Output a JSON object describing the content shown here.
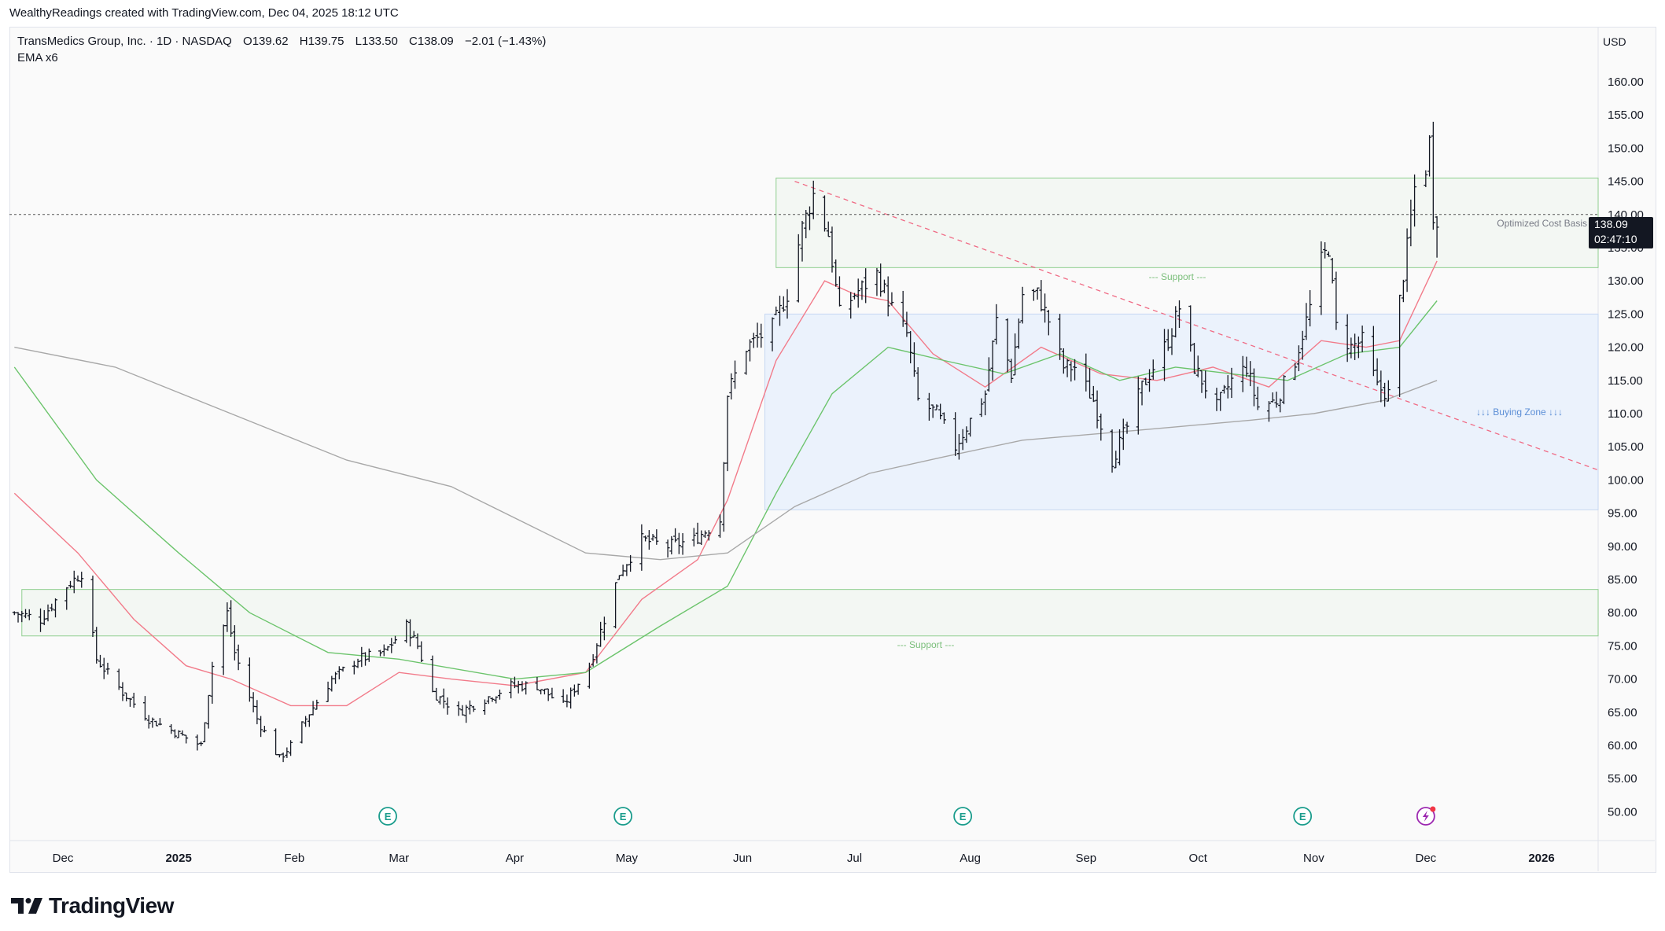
{
  "header": {
    "caption": "WealthyReadings created with TradingView.com, Dec 04, 2025 18:12 UTC"
  },
  "legend": {
    "symbol": "TransMedics Group, Inc. · 1D · NASDAQ",
    "open": "O139.62",
    "high": "H139.75",
    "low": "L133.50",
    "close": "C138.09",
    "change": "−2.01 (−1.43%)",
    "indicator": "EMA x6"
  },
  "price_scale": {
    "currency": "USD",
    "last_price": "138.09",
    "countdown": "02:47:10"
  },
  "annotations": {
    "support_top": "--- Support ---",
    "support_bottom": "--- Support ---",
    "buying_zone": "↓↓↓ Buying Zone ↓↓↓",
    "cost_basis": "Optimized Cost Basis"
  },
  "branding": {
    "name": "TradingView"
  },
  "colors": {
    "ema_fast": "#f27b8a",
    "ema_mid": "#6cc46c",
    "ema_slow": "#a8a8a8",
    "buying_zone_fill": "#e8f0fc",
    "support_fill": "#f1f6f1",
    "trendline": "#f06b85"
  },
  "chart_data": {
    "type": "ohlc-bar",
    "y_ticks": [
      160,
      155,
      150,
      145,
      140,
      135,
      130,
      125,
      120,
      115,
      110,
      105,
      100,
      95,
      90,
      85,
      80,
      75,
      70,
      65,
      60,
      55,
      50
    ],
    "y_range": [
      45,
      167
    ],
    "x_labels": [
      {
        "label": "Dec",
        "date": "2024-12-01"
      },
      {
        "label": "2025",
        "date": "2025-01-01"
      },
      {
        "label": "Feb",
        "date": "2025-02-01"
      },
      {
        "label": "Mar",
        "date": "2025-03-01"
      },
      {
        "label": "Apr",
        "date": "2025-04-01"
      },
      {
        "label": "May",
        "date": "2025-05-01"
      },
      {
        "label": "Jun",
        "date": "2025-06-01"
      },
      {
        "label": "Jul",
        "date": "2025-07-01"
      },
      {
        "label": "Aug",
        "date": "2025-08-01"
      },
      {
        "label": "Sep",
        "date": "2025-09-01"
      },
      {
        "label": "Oct",
        "date": "2025-10-01"
      },
      {
        "label": "Nov",
        "date": "2025-11-01"
      },
      {
        "label": "Dec",
        "date": "2025-12-01"
      },
      {
        "label": "2026",
        "date": "2026-01-01"
      }
    ],
    "earnings_markers": [
      "2025-02-26",
      "2025-04-30",
      "2025-07-30",
      "2025-10-29"
    ],
    "dividend_marker": "2025-12-01",
    "zones": [
      {
        "name": "Optimized Cost Basis",
        "from": "2025-06-10",
        "to": "2026-01-31",
        "low": 132,
        "high": 145.5
      },
      {
        "name": "Buying Zone",
        "from": "2025-06-07",
        "to": "2026-01-31",
        "low": 95.5,
        "high": 125
      },
      {
        "name": "Support",
        "from": "2024-11-20",
        "to": "2026-01-31",
        "low": 76.5,
        "high": 83.5
      }
    ],
    "trendline": {
      "from": [
        "2025-06-15",
        145
      ],
      "to": [
        "2026-01-31",
        101.5
      ]
    },
    "current_price_line": 140,
    "series": [
      {
        "name": "Price",
        "anchors": [
          [
            "2024-11-18",
            80
          ],
          [
            "2024-11-25",
            79
          ],
          [
            "2024-12-02",
            84
          ],
          [
            "2024-12-06",
            86
          ],
          [
            "2024-12-10",
            73
          ],
          [
            "2024-12-17",
            68
          ],
          [
            "2024-12-24",
            64
          ],
          [
            "2024-12-31",
            62
          ],
          [
            "2025-01-07",
            60
          ],
          [
            "2025-01-10",
            72
          ],
          [
            "2025-01-14",
            80
          ],
          [
            "2025-01-16",
            74
          ],
          [
            "2025-01-22",
            64
          ],
          [
            "2025-01-28",
            58
          ],
          [
            "2025-01-31",
            60
          ],
          [
            "2025-02-04",
            64
          ],
          [
            "2025-02-11",
            70
          ],
          [
            "2025-02-18",
            73
          ],
          [
            "2025-02-25",
            74
          ],
          [
            "2025-03-03",
            78
          ],
          [
            "2025-03-06",
            75
          ],
          [
            "2025-03-10",
            68
          ],
          [
            "2025-03-17",
            65
          ],
          [
            "2025-03-24",
            67
          ],
          [
            "2025-03-31",
            69
          ],
          [
            "2025-04-07",
            69
          ],
          [
            "2025-04-14",
            66
          ],
          [
            "2025-04-21",
            72
          ],
          [
            "2025-04-25",
            79
          ],
          [
            "2025-04-29",
            86
          ],
          [
            "2025-05-05",
            91
          ],
          [
            "2025-05-12",
            90
          ],
          [
            "2025-05-19",
            91
          ],
          [
            "2025-05-26",
            94
          ],
          [
            "2025-05-28",
            113
          ],
          [
            "2025-06-02",
            120
          ],
          [
            "2025-06-09",
            123
          ],
          [
            "2025-06-13",
            128
          ],
          [
            "2025-06-17",
            138
          ],
          [
            "2025-06-20",
            143
          ],
          [
            "2025-06-24",
            137
          ],
          [
            "2025-06-27",
            125
          ],
          [
            "2025-07-01",
            128
          ],
          [
            "2025-07-07",
            131
          ],
          [
            "2025-07-11",
            126
          ],
          [
            "2025-07-15",
            122
          ],
          [
            "2025-07-18",
            112
          ],
          [
            "2025-07-23",
            110
          ],
          [
            "2025-07-28",
            105
          ],
          [
            "2025-07-31",
            108
          ],
          [
            "2025-08-05",
            113
          ],
          [
            "2025-08-08",
            124
          ],
          [
            "2025-08-12",
            116
          ],
          [
            "2025-08-15",
            128
          ],
          [
            "2025-08-19",
            128
          ],
          [
            "2025-08-22",
            124
          ],
          [
            "2025-08-26",
            117
          ],
          [
            "2025-08-29",
            117
          ],
          [
            "2025-09-03",
            112
          ],
          [
            "2025-09-08",
            103
          ],
          [
            "2025-09-12",
            108
          ],
          [
            "2025-09-16",
            114
          ],
          [
            "2025-09-19",
            117
          ],
          [
            "2025-09-23",
            121
          ],
          [
            "2025-09-26",
            126
          ],
          [
            "2025-09-30",
            117
          ],
          [
            "2025-10-06",
            111
          ],
          [
            "2025-10-10",
            115
          ],
          [
            "2025-10-14",
            117
          ],
          [
            "2025-10-17",
            111
          ],
          [
            "2025-10-22",
            112
          ],
          [
            "2025-10-27",
            118
          ],
          [
            "2025-10-31",
            126
          ],
          [
            "2025-11-03",
            133
          ],
          [
            "2025-11-05",
            135
          ],
          [
            "2025-11-07",
            123
          ],
          [
            "2025-11-11",
            120
          ],
          [
            "2025-11-14",
            121
          ],
          [
            "2025-11-18",
            114
          ],
          [
            "2025-11-21",
            113
          ],
          [
            "2025-11-24",
            127
          ],
          [
            "2025-11-26",
            135
          ],
          [
            "2025-11-28",
            144
          ],
          [
            "2025-12-01",
            147
          ],
          [
            "2025-12-02",
            151
          ],
          [
            "2025-12-03",
            140.1
          ],
          [
            "2025-12-04",
            138.09
          ]
        ]
      },
      {
        "name": "EMA fast",
        "points": [
          [
            "2024-11-18",
            98
          ],
          [
            "2024-12-05",
            89
          ],
          [
            "2024-12-20",
            79
          ],
          [
            "2025-01-03",
            72
          ],
          [
            "2025-01-15",
            70
          ],
          [
            "2025-01-31",
            66
          ],
          [
            "2025-02-15",
            66
          ],
          [
            "2025-03-01",
            71
          ],
          [
            "2025-03-15",
            70
          ],
          [
            "2025-04-01",
            69
          ],
          [
            "2025-04-20",
            71
          ],
          [
            "2025-05-05",
            82
          ],
          [
            "2025-05-20",
            88
          ],
          [
            "2025-05-28",
            97
          ],
          [
            "2025-06-10",
            118
          ],
          [
            "2025-06-23",
            130
          ],
          [
            "2025-07-01",
            128
          ],
          [
            "2025-07-10",
            127
          ],
          [
            "2025-07-22",
            119
          ],
          [
            "2025-08-05",
            114
          ],
          [
            "2025-08-20",
            120
          ],
          [
            "2025-09-05",
            116
          ],
          [
            "2025-09-20",
            115
          ],
          [
            "2025-10-05",
            117
          ],
          [
            "2025-10-20",
            114
          ],
          [
            "2025-11-03",
            121
          ],
          [
            "2025-11-15",
            120
          ],
          [
            "2025-11-24",
            121
          ],
          [
            "2025-12-04",
            133
          ]
        ]
      },
      {
        "name": "EMA mid",
        "points": [
          [
            "2024-11-18",
            117
          ],
          [
            "2024-12-10",
            100
          ],
          [
            "2025-01-01",
            89
          ],
          [
            "2025-01-20",
            80
          ],
          [
            "2025-02-10",
            74
          ],
          [
            "2025-03-01",
            73
          ],
          [
            "2025-04-01",
            70
          ],
          [
            "2025-04-20",
            71
          ],
          [
            "2025-05-10",
            78
          ],
          [
            "2025-05-28",
            84
          ],
          [
            "2025-06-10",
            98
          ],
          [
            "2025-06-25",
            113
          ],
          [
            "2025-07-10",
            120
          ],
          [
            "2025-07-25",
            118
          ],
          [
            "2025-08-10",
            116
          ],
          [
            "2025-08-25",
            119
          ],
          [
            "2025-09-10",
            115
          ],
          [
            "2025-09-25",
            117
          ],
          [
            "2025-10-10",
            116
          ],
          [
            "2025-10-25",
            115
          ],
          [
            "2025-11-10",
            119
          ],
          [
            "2025-11-24",
            120
          ],
          [
            "2025-12-04",
            127
          ]
        ]
      },
      {
        "name": "EMA slow",
        "points": [
          [
            "2024-11-18",
            120
          ],
          [
            "2024-12-15",
            117
          ],
          [
            "2025-01-15",
            110
          ],
          [
            "2025-02-15",
            103
          ],
          [
            "2025-03-15",
            99
          ],
          [
            "2025-04-20",
            89
          ],
          [
            "2025-05-10",
            88
          ],
          [
            "2025-05-28",
            89
          ],
          [
            "2025-06-15",
            96
          ],
          [
            "2025-07-05",
            101
          ],
          [
            "2025-07-25",
            103.5
          ],
          [
            "2025-08-15",
            106
          ],
          [
            "2025-09-05",
            107
          ],
          [
            "2025-09-25",
            108
          ],
          [
            "2025-10-15",
            109
          ],
          [
            "2025-11-01",
            110
          ],
          [
            "2025-11-20",
            112
          ],
          [
            "2025-12-04",
            115
          ]
        ]
      }
    ]
  }
}
